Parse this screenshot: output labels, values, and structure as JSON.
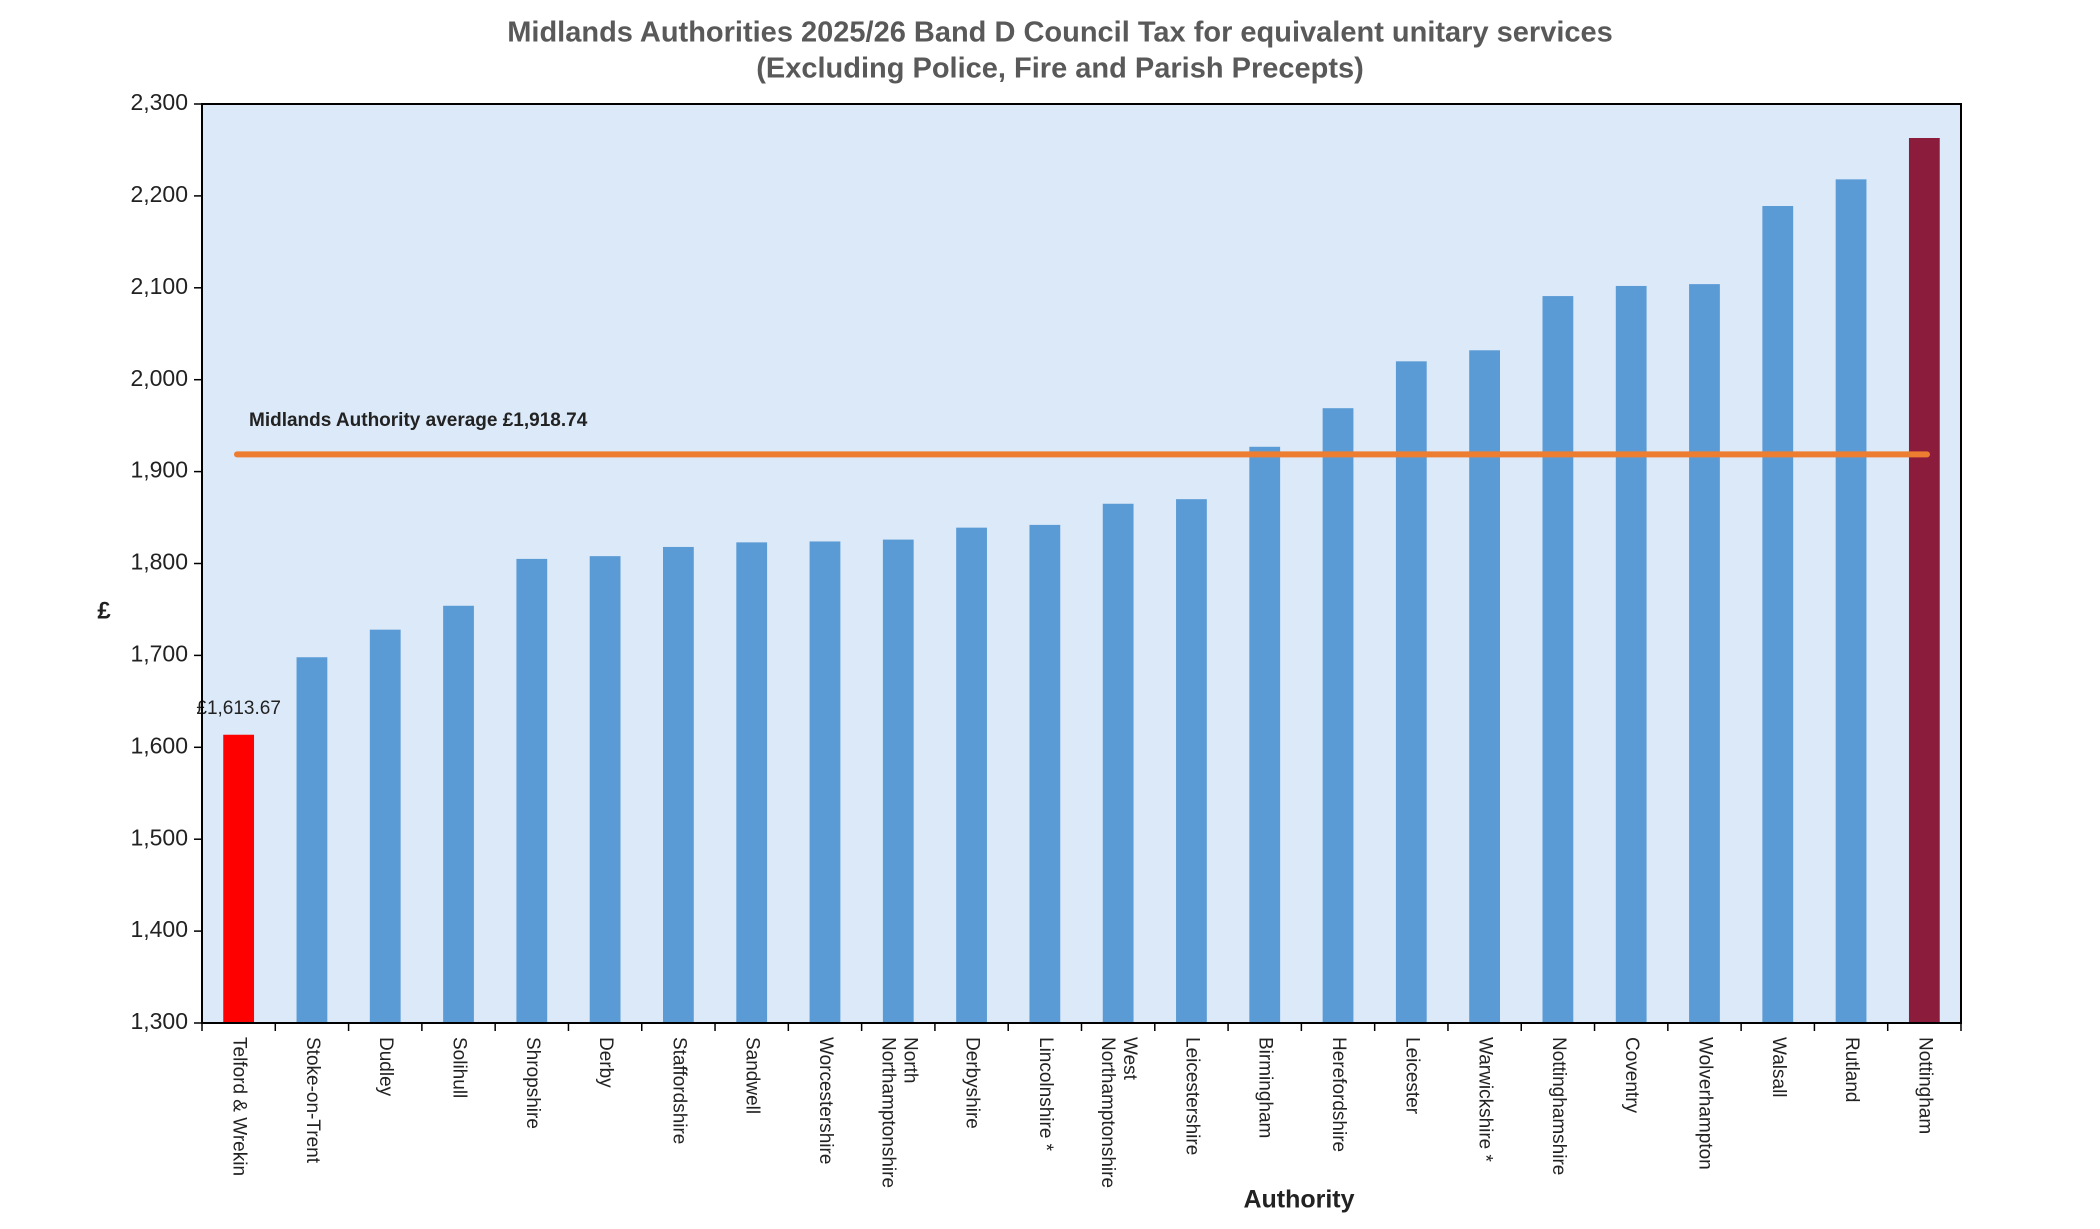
{
  "chart_data": {
    "type": "bar",
    "title": "Midlands Authorities 2025/26 Band D Council Tax for equivalent unitary services",
    "subtitle": "(Excluding Police, Fire and Parish Precepts)",
    "x_label": "Authority",
    "y_label": "£",
    "categories": [
      "Telford & Wrekin",
      "Stoke-on-Trent",
      "Dudley",
      "Solihull",
      "Shropshire",
      "Derby",
      "Staffordshire",
      "Sandwell",
      "Worcestershire",
      "North\nNorthamptonshire",
      "Derbyshire",
      "Lincolnshire *",
      "West\nNorthamptonshire",
      "Leicestershire",
      "Birmingham",
      "Herefordshire",
      "Leicester",
      "Warwickshire *",
      "Nottinghamshire",
      "Coventry",
      "Wolverhampton",
      "Walsall",
      "Rutland",
      "Nottingham"
    ],
    "values": [
      1613.67,
      1698,
      1728,
      1754,
      1805,
      1808,
      1818,
      1823,
      1824,
      1826,
      1839,
      1842,
      1865,
      1870,
      1927,
      1969,
      2020,
      2032,
      2091,
      2102,
      2104,
      2189,
      2218,
      2263
    ],
    "value_labels": [
      "£1,613.67",
      null,
      null,
      null,
      null,
      null,
      null,
      null,
      null,
      null,
      null,
      null,
      null,
      null,
      null,
      null,
      null,
      null,
      null,
      null,
      null,
      null,
      null,
      null
    ],
    "colors": [
      "#ff0000",
      "#5b9bd5",
      "#5b9bd5",
      "#5b9bd5",
      "#5b9bd5",
      "#5b9bd5",
      "#5b9bd5",
      "#5b9bd5",
      "#5b9bd5",
      "#5b9bd5",
      "#5b9bd5",
      "#5b9bd5",
      "#5b9bd5",
      "#5b9bd5",
      "#5b9bd5",
      "#5b9bd5",
      "#5b9bd5",
      "#5b9bd5",
      "#5b9bd5",
      "#5b9bd5",
      "#5b9bd5",
      "#5b9bd5",
      "#5b9bd5",
      "#8b1c3c"
    ],
    "reference_line": {
      "value": 1918.74,
      "label": "Midlands Authority average £1,918.74",
      "color": "#ed7d31"
    },
    "ylim": [
      1300,
      2300
    ],
    "yticks": [
      {
        "value": 1300,
        "label": "1,300"
      },
      {
        "value": 1400,
        "label": "1,400"
      },
      {
        "value": 1500,
        "label": "1,500"
      },
      {
        "value": 1600,
        "label": "1,600"
      },
      {
        "value": 1700,
        "label": "1,700"
      },
      {
        "value": 1800,
        "label": "1,800"
      },
      {
        "value": 1900,
        "label": "1,900"
      },
      {
        "value": 2000,
        "label": "2,000"
      },
      {
        "value": 2100,
        "label": "2,100"
      },
      {
        "value": 2200,
        "label": "2,200"
      },
      {
        "value": 2300,
        "label": "2,300"
      }
    ]
  }
}
